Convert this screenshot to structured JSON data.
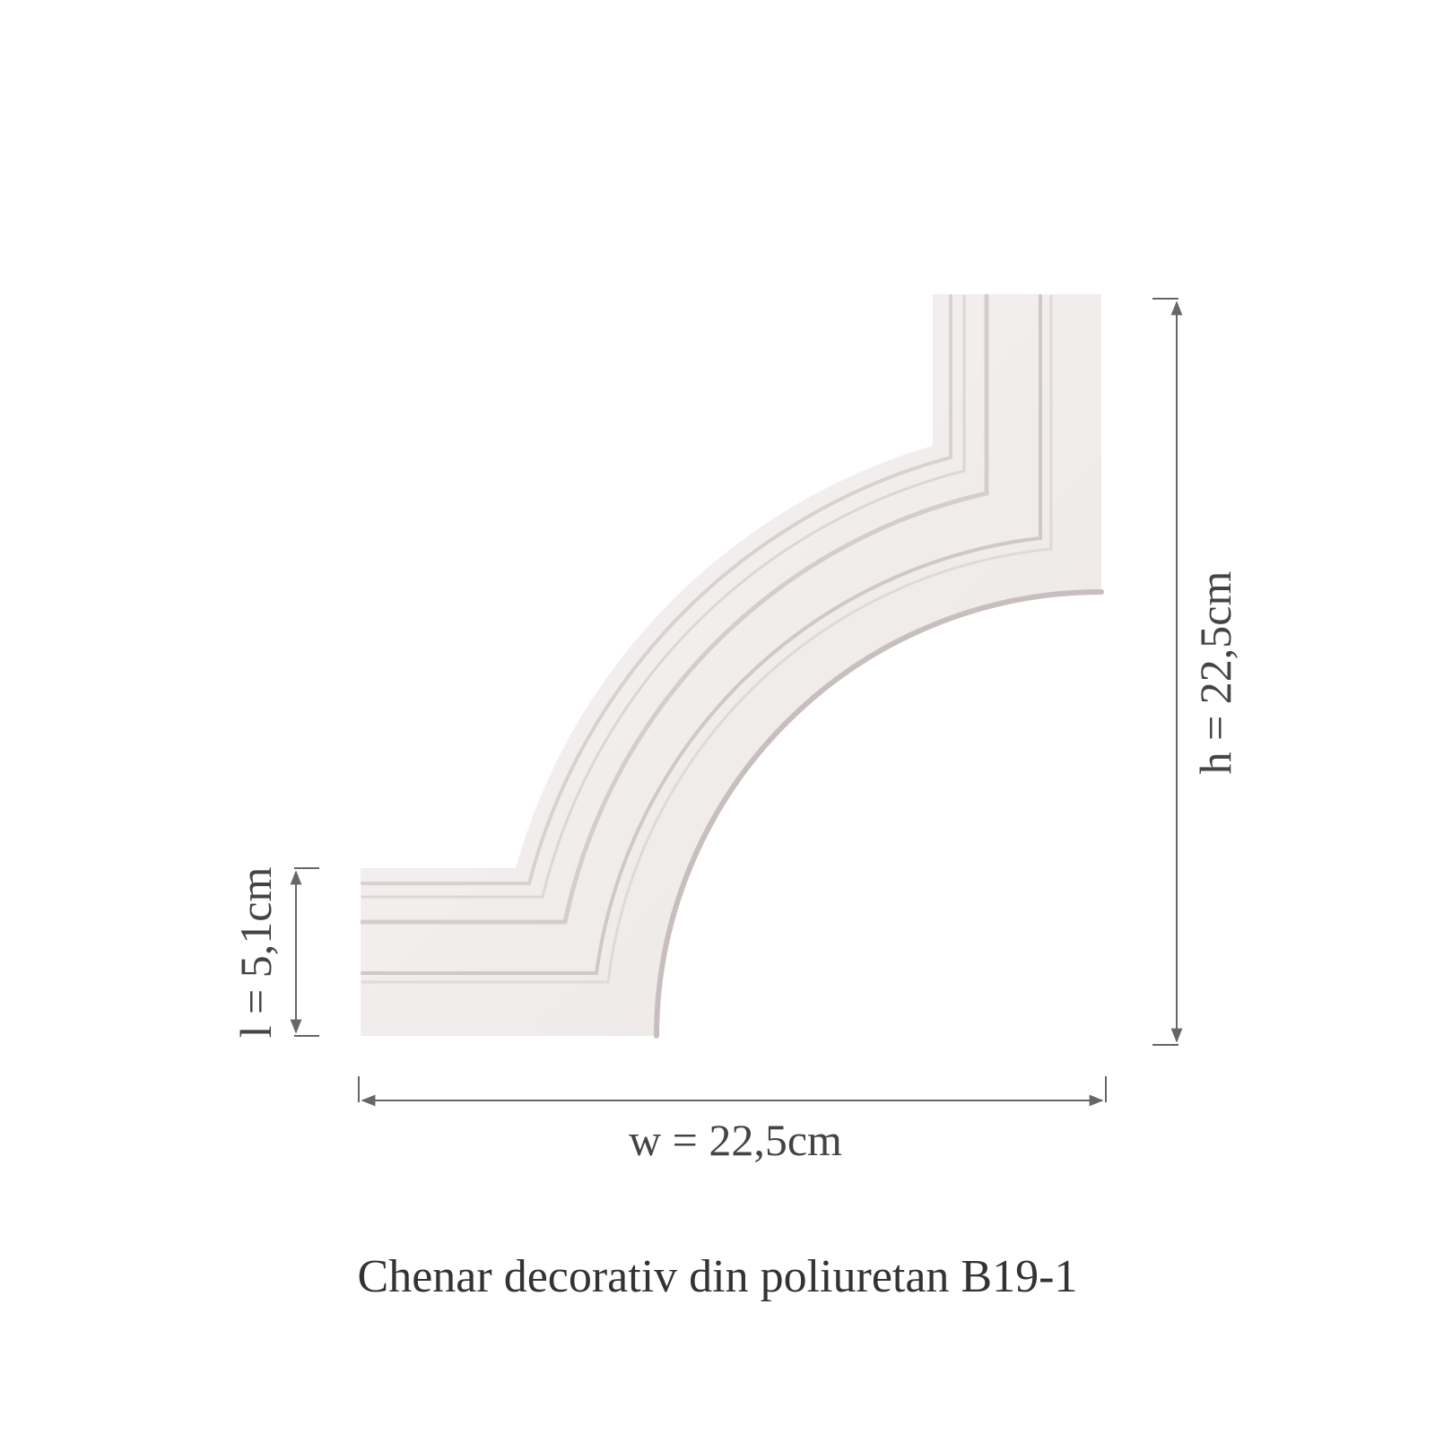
{
  "product": {
    "caption": "Chenar decorativ din poliuretan B19-1",
    "material_color": "#f3eeee"
  },
  "dimensions": {
    "length_label": "l = 5,1cm",
    "height_label": "h = 22,5cm",
    "width_label": "w = 22,5cm",
    "line_color": "#666666"
  }
}
